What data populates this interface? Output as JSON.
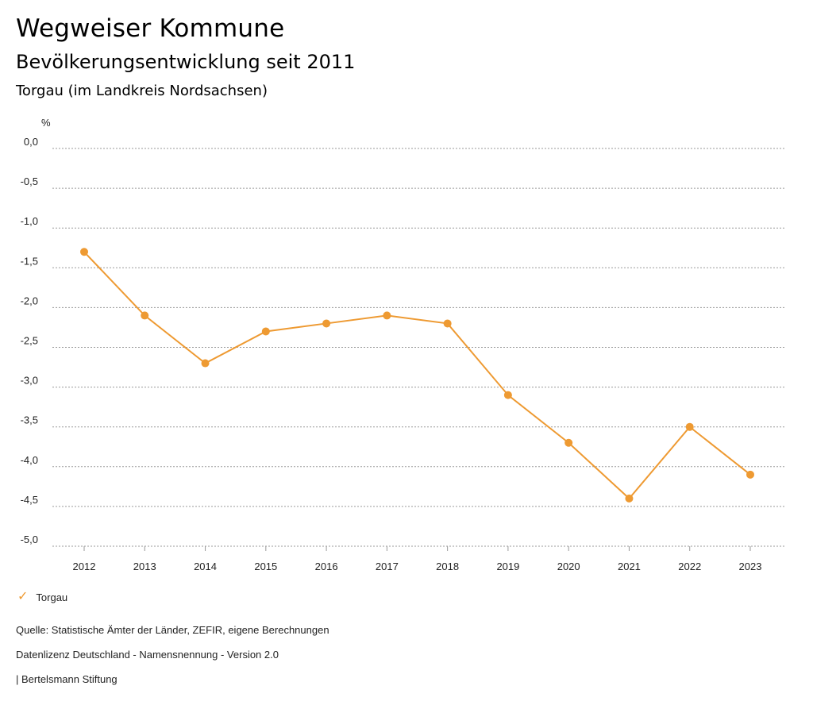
{
  "header": {
    "title": "Wegweiser Kommune",
    "subtitle": "Bevölkerungsentwicklung seit 2011",
    "region": "Torgau (im Landkreis Nordsachsen)"
  },
  "chart_data": {
    "type": "line",
    "unit_label": "%",
    "categories": [
      "2012",
      "2013",
      "2014",
      "2015",
      "2016",
      "2017",
      "2018",
      "2019",
      "2020",
      "2021",
      "2022",
      "2023"
    ],
    "series": [
      {
        "name": "Torgau",
        "color": "#ee9a32",
        "values": [
          -1.3,
          -2.1,
          -2.7,
          -2.3,
          -2.2,
          -2.1,
          -2.2,
          -3.1,
          -3.7,
          -4.4,
          -3.5,
          -4.1
        ]
      }
    ],
    "ylim": [
      -5.0,
      0.0
    ],
    "yticks": [
      0.0,
      -0.5,
      -1.0,
      -1.5,
      -2.0,
      -2.5,
      -3.0,
      -3.5,
      -4.0,
      -4.5,
      -5.0
    ],
    "ytick_labels": [
      "0,0",
      "-0,5",
      "-1,0",
      "-1,5",
      "-2,0",
      "-2,5",
      "-3,0",
      "-3,5",
      "-4,0",
      "-4,5",
      "-5,0"
    ],
    "grid": true,
    "legend_position": "bottom-left"
  },
  "legend": {
    "label": "Torgau",
    "icon": "check-icon"
  },
  "footer": {
    "source": "Quelle: Statistische Ämter der Länder, ZEFIR, eigene Berechnungen",
    "license": "Datenlizenz Deutschland - Namensnennung - Version 2.0",
    "publisher": "| Bertelsmann Stiftung"
  }
}
